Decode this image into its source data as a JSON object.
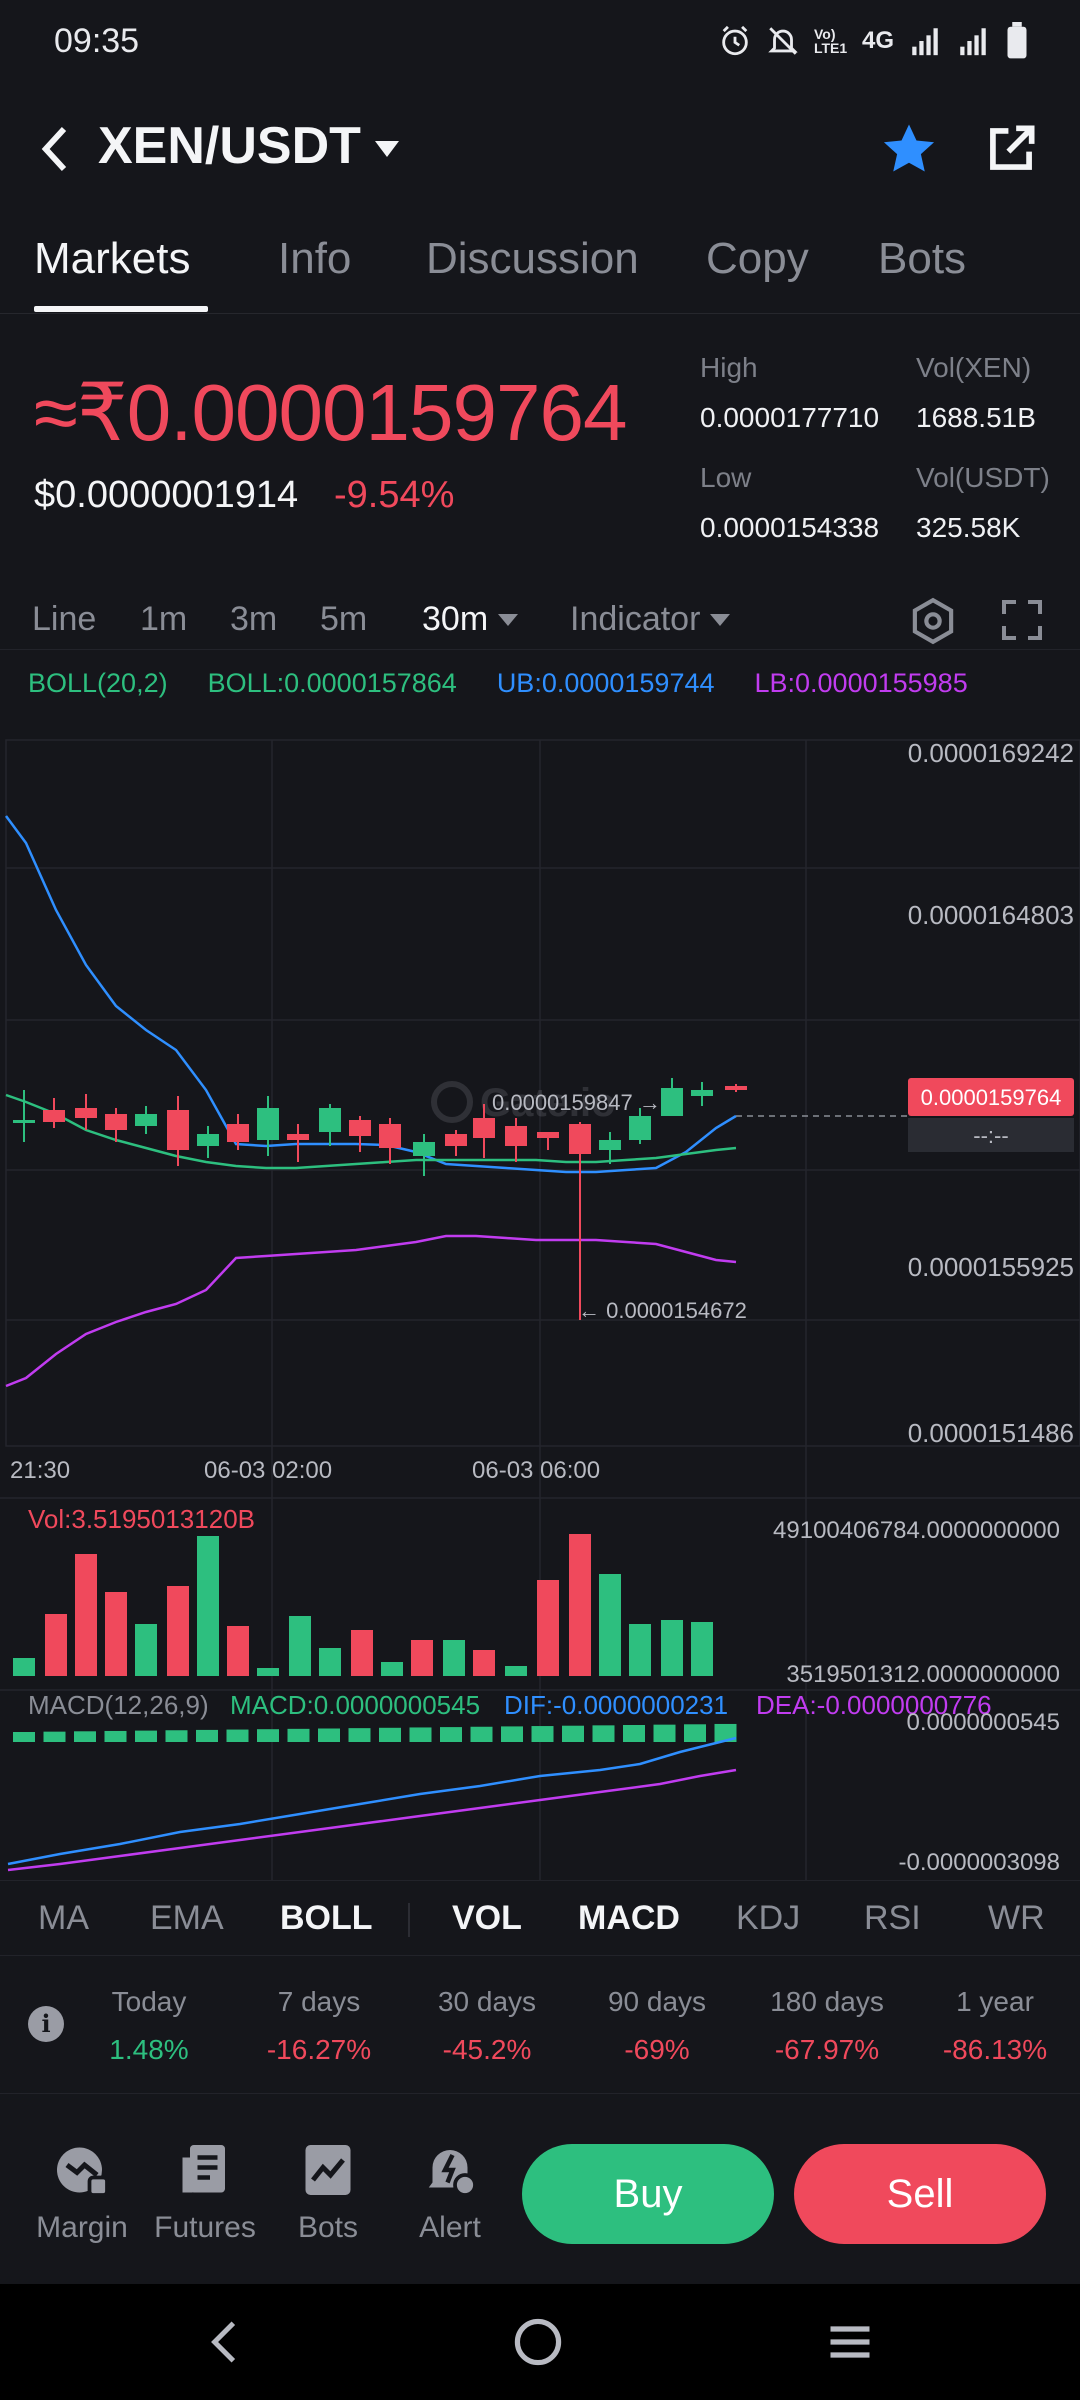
{
  "status_bar": {
    "time": "09:35",
    "network": "4G",
    "volte": "Vo) LTE1"
  },
  "header": {
    "pair": "XEN/USDT"
  },
  "tabs": [
    {
      "label": "Markets",
      "active": true
    },
    {
      "label": "Info"
    },
    {
      "label": "Discussion"
    },
    {
      "label": "Copy"
    },
    {
      "label": "Bots"
    }
  ],
  "price": {
    "main": "≈₹0.0000159764",
    "usd": "$0.0000001914",
    "change": "-9.54%",
    "high_label": "High",
    "high": "0.0000177710",
    "low_label": "Low",
    "low": "0.0000154338",
    "vol_xen_label": "Vol(XEN)",
    "vol_xen": "1688.51B",
    "vol_usdt_label": "Vol(USDT)",
    "vol_usdt": "325.58K"
  },
  "toolbar": {
    "line": "Line",
    "m1": "1m",
    "m3": "3m",
    "m5": "5m",
    "m30": "30m",
    "indicator": "Indicator"
  },
  "boll_legend": {
    "name": "BOLL(20,2)",
    "boll": "BOLL:0.0000157864",
    "ub": "UB:0.0000159744",
    "lb": "LB:0.0000155985"
  },
  "chart": {
    "y_ticks": [
      "0.0000169242",
      "0.0000164803",
      "0.0000155925",
      "0.0000151486"
    ],
    "x_ticks": [
      "21:30",
      "06-03 02:00",
      "06-03 06:00"
    ],
    "current_price_tag": "0.0000159764",
    "current_time_tag": "--:--",
    "high_marker": "0.0000159847 →",
    "low_marker": "← 0.0000154672",
    "watermark": "Gate.io",
    "vol_label": "Vol:3.5195013120B",
    "vol_top": "49100406784.0000000000",
    "vol_bottom": "3519501312.0000000000",
    "macd_name": "MACD(12,26,9)",
    "macd_value": "MACD:0.0000000545",
    "dif_value": "DIF:-0.0000000231",
    "dea_value": "DEA:-0.0000000776",
    "macd_top": "0.0000000545",
    "macd_bottom": "-0.0000003098"
  },
  "colors": {
    "up": "#2dbf7f",
    "down": "#f0495c",
    "ub": "#2f8fff",
    "mid": "#2dbf7f",
    "lb": "#c13cf0",
    "accent_star": "#2f8fff"
  },
  "indicators": [
    {
      "label": "MA"
    },
    {
      "label": "EMA"
    },
    {
      "label": "BOLL",
      "active": true
    },
    {
      "label": "VOL",
      "active": true
    },
    {
      "label": "MACD",
      "active": true
    },
    {
      "label": "KDJ"
    },
    {
      "label": "RSI"
    },
    {
      "label": "WR"
    }
  ],
  "performance": [
    {
      "label": "Today",
      "value": "1.48%",
      "dir": "up"
    },
    {
      "label": "7 days",
      "value": "-16.27%",
      "dir": "down"
    },
    {
      "label": "30 days",
      "value": "-45.2%",
      "dir": "down"
    },
    {
      "label": "90 days",
      "value": "-69%",
      "dir": "down"
    },
    {
      "label": "180 days",
      "value": "-67.97%",
      "dir": "down"
    },
    {
      "label": "1 year",
      "value": "-86.13%",
      "dir": "down"
    }
  ],
  "bottom_nav": {
    "margin": "Margin",
    "futures": "Futures",
    "bots": "Bots",
    "alert": "Alert",
    "buy": "Buy",
    "sell": "Sell"
  }
}
